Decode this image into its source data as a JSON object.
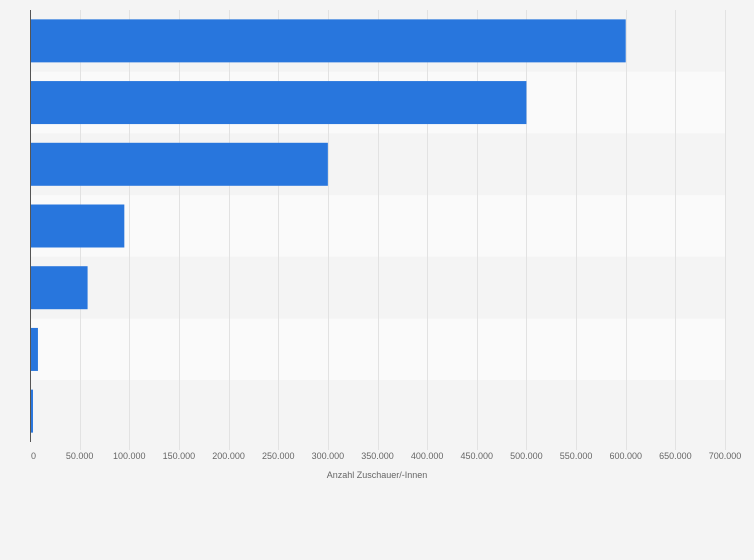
{
  "chart_data": {
    "type": "bar",
    "orientation": "horizontal",
    "categories": [
      "",
      "",
      "",
      "",
      "",
      "",
      ""
    ],
    "values": [
      600000,
      500000,
      300000,
      95000,
      58000,
      8000,
      3000
    ],
    "xlabel": "Anzahl Zuschauer/-Innen",
    "ylabel": "",
    "xlim": [
      0,
      700000
    ],
    "xticks": [
      0,
      50000,
      100000,
      150000,
      200000,
      250000,
      300000,
      350000,
      400000,
      450000,
      500000,
      550000,
      600000,
      650000,
      700000
    ],
    "xtick_labels": [
      "0",
      "50.000",
      "100.000",
      "150.000",
      "200.000",
      "250.000",
      "300.000",
      "350.000",
      "400.000",
      "450.000",
      "500.000",
      "550.000",
      "600.000",
      "650.000",
      "700.000"
    ],
    "grid": true,
    "bar_color": "#2876dd",
    "band_colors": [
      "#f4f4f4",
      "#fafafa"
    ],
    "gridline_color": "#e2e2e2",
    "axis_color": "#555555",
    "text_color": "#666666"
  }
}
